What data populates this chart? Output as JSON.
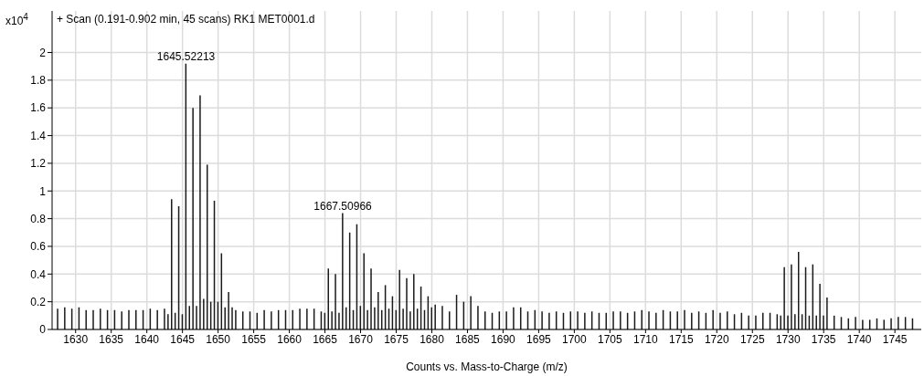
{
  "chart_data": {
    "type": "bar",
    "title": "+ Scan (0.191-0.902 min, 45 scans) RK1 MET0001.d",
    "xlabel": "Counts vs. Mass-to-Charge (m/z)",
    "ylabel": "x10$^{4}$",
    "x": [
      1627.5,
      1628.5,
      1629.5,
      1630.5,
      1631.5,
      1632.5,
      1633.5,
      1634.5,
      1635.5,
      1636.5,
      1637.5,
      1638.5,
      1639.5,
      1640.5,
      1641.5,
      1642.5,
      1643,
      1643.5,
      1644,
      1644.5,
      1645,
      1645.5,
      1646,
      1646.5,
      1647,
      1647.5,
      1648,
      1648.5,
      1649,
      1649.5,
      1650,
      1650.5,
      1651,
      1651.5,
      1652,
      1652.5,
      1653.5,
      1654.5,
      1655.5,
      1656.5,
      1657.5,
      1658.5,
      1659.5,
      1660.5,
      1661.5,
      1662.5,
      1663.5,
      1664.5,
      1665,
      1665.5,
      1666,
      1666.5,
      1667,
      1667.5,
      1668,
      1668.5,
      1669,
      1669.5,
      1670,
      1670.5,
      1671,
      1671.5,
      1672,
      1672.5,
      1673,
      1673.5,
      1674,
      1674.5,
      1675,
      1675.5,
      1676,
      1676.5,
      1677,
      1677.5,
      1678,
      1678.5,
      1679,
      1679.5,
      1680,
      1680.5,
      1681.5,
      1682.5,
      1683.5,
      1684.5,
      1685.5,
      1686.5,
      1687.5,
      1688.5,
      1689.5,
      1690.5,
      1691.5,
      1692.5,
      1693.5,
      1694.5,
      1695.5,
      1696.5,
      1697.5,
      1698.5,
      1699.5,
      1700.5,
      1701.5,
      1702.5,
      1703.5,
      1704.5,
      1705.5,
      1706.5,
      1707.5,
      1708.5,
      1709.5,
      1710.5,
      1711.5,
      1712.5,
      1713.5,
      1714.5,
      1715.5,
      1716.5,
      1717.5,
      1718.5,
      1719.5,
      1720.5,
      1721.5,
      1722.5,
      1723.5,
      1724.5,
      1725.5,
      1726.5,
      1727.5,
      1728.5,
      1729,
      1729.5,
      1730,
      1730.5,
      1731,
      1731.5,
      1732,
      1732.5,
      1733,
      1733.5,
      1734,
      1734.5,
      1735,
      1735.5,
      1736.5,
      1737.5,
      1738.5,
      1739.5,
      1740.5,
      1741.5,
      1742.5,
      1743.5,
      1744.5,
      1745.5,
      1746.5,
      1747.5
    ],
    "series": [
      {
        "color": "#1a1a1a",
        "values": [
          0.15,
          0.16,
          0.15,
          0.16,
          0.14,
          0.14,
          0.15,
          0.14,
          0.14,
          0.13,
          0.14,
          0.14,
          0.14,
          0.15,
          0.14,
          0.15,
          0.11,
          0.94,
          0.12,
          0.89,
          0.11,
          1.92,
          0.17,
          1.6,
          0.17,
          1.69,
          0.22,
          1.19,
          0.2,
          0.93,
          0.2,
          0.55,
          0.16,
          0.27,
          0.16,
          0.14,
          0.13,
          0.13,
          0.12,
          0.14,
          0.13,
          0.14,
          0.14,
          0.14,
          0.15,
          0.15,
          0.15,
          0.13,
          0.12,
          0.44,
          0.13,
          0.4,
          0.12,
          0.84,
          0.16,
          0.7,
          0.14,
          0.76,
          0.17,
          0.55,
          0.14,
          0.44,
          0.16,
          0.27,
          0.14,
          0.32,
          0.15,
          0.24,
          0.14,
          0.43,
          0.15,
          0.37,
          0.13,
          0.4,
          0.15,
          0.31,
          0.14,
          0.24,
          0.16,
          0.18,
          0.17,
          0.13,
          0.25,
          0.2,
          0.24,
          0.17,
          0.13,
          0.12,
          0.13,
          0.13,
          0.16,
          0.16,
          0.13,
          0.14,
          0.13,
          0.12,
          0.13,
          0.12,
          0.13,
          0.13,
          0.12,
          0.13,
          0.12,
          0.12,
          0.13,
          0.13,
          0.12,
          0.13,
          0.14,
          0.13,
          0.12,
          0.14,
          0.13,
          0.13,
          0.14,
          0.12,
          0.13,
          0.12,
          0.14,
          0.12,
          0.13,
          0.11,
          0.12,
          0.1,
          0.1,
          0.12,
          0.12,
          0.11,
          0.1,
          0.45,
          0.1,
          0.47,
          0.11,
          0.56,
          0.11,
          0.45,
          0.1,
          0.47,
          0.1,
          0.33,
          0.1,
          0.23,
          0.1,
          0.09,
          0.08,
          0.09,
          0.07,
          0.07,
          0.08,
          0.07,
          0.08,
          0.09,
          0.09,
          0.08
        ]
      }
    ],
    "xlim": [
      1626.7,
      1748.7
    ],
    "xticks": [
      1630,
      1635,
      1640,
      1645,
      1650,
      1655,
      1660,
      1665,
      1670,
      1675,
      1680,
      1685,
      1690,
      1695,
      1700,
      1705,
      1710,
      1715,
      1720,
      1725,
      1730,
      1735,
      1740,
      1745
    ],
    "ylim": [
      0,
      2.3
    ],
    "yticks": [
      0,
      0.2,
      0.4,
      0.6,
      0.8,
      1,
      1.2,
      1.4,
      1.6,
      1.8,
      2
    ],
    "grid": true,
    "annotations": [
      {
        "text": "1645.52213",
        "x": 1645.5,
        "y": 1.92
      },
      {
        "text": "1667.50966",
        "x": 1667.5,
        "y": 0.84
      }
    ]
  }
}
